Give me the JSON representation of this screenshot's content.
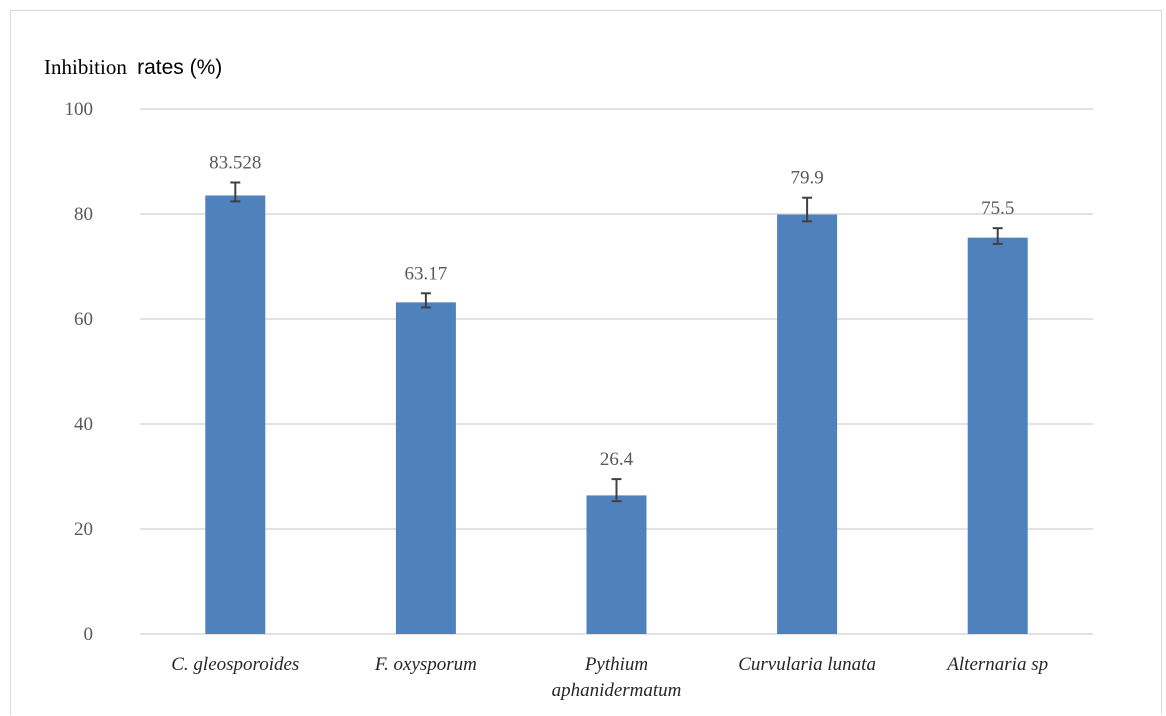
{
  "chart_data": {
    "type": "bar",
    "title": "",
    "ylabel": {
      "part1": "Inhibition",
      "part2": "rates (%)"
    },
    "xlabel": "",
    "categories": [
      [
        "C. gleosporoides"
      ],
      [
        "F. oxysporum"
      ],
      [
        "Pythium",
        "aphanidermatum"
      ],
      [
        "Curvularia lunata"
      ],
      [
        "Alternaria sp"
      ]
    ],
    "values": [
      83.528,
      63.17,
      26.4,
      79.9,
      75.5
    ],
    "data_labels": [
      "83.528",
      "63.17",
      "26.4",
      "79.9",
      "75.5"
    ],
    "error_bars": [
      [
        82.4,
        86.0
      ],
      [
        62.2,
        64.9
      ],
      [
        25.3,
        29.5
      ],
      [
        78.6,
        83.1
      ],
      [
        74.3,
        77.3
      ]
    ],
    "ylim": [
      0,
      100
    ],
    "yticks": [
      0,
      20,
      40,
      60,
      80,
      100
    ],
    "grid": true,
    "legend": "none",
    "colors": {
      "bar": "#4f81bd",
      "grid": "#d9d9d9",
      "error_bar": "#404040"
    }
  }
}
